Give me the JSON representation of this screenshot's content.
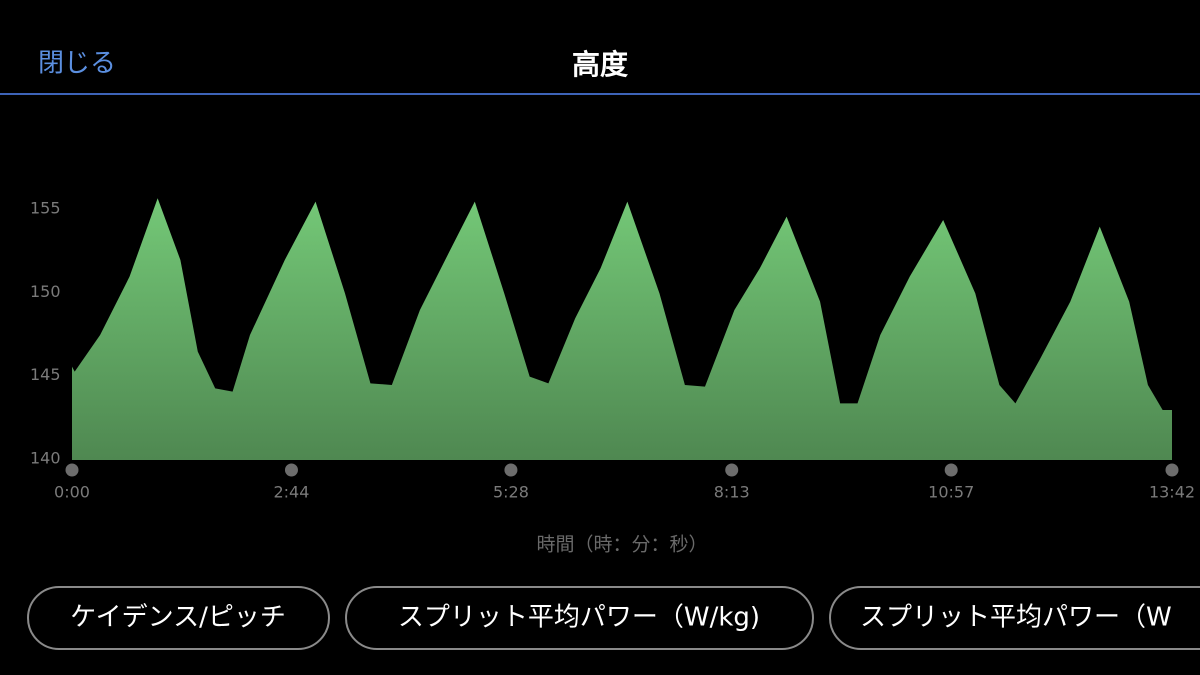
{
  "header": {
    "close": "閉じる",
    "title": "高度"
  },
  "chart_data": {
    "type": "area",
    "x": [
      0,
      2,
      21,
      43,
      64,
      81,
      94,
      107,
      120,
      133,
      159,
      182,
      204,
      223,
      239,
      260,
      282,
      301,
      323,
      342,
      356,
      376,
      395,
      415,
      439,
      458,
      473,
      495,
      514,
      534,
      559,
      574,
      587,
      604,
      626,
      651,
      675,
      693,
      705,
      723,
      746,
      768,
      790,
      804,
      815,
      822
    ],
    "values": [
      145.6,
      145.3,
      147.5,
      151,
      155.7,
      152,
      146.5,
      144.3,
      144.1,
      147.5,
      152,
      155.5,
      150,
      144.6,
      144.5,
      149,
      152.5,
      155.5,
      150,
      145,
      144.6,
      148.5,
      151.5,
      155.5,
      150,
      144.5,
      144.4,
      149,
      151.5,
      154.6,
      149.5,
      143.4,
      143.4,
      147.5,
      151,
      154.4,
      150,
      144.5,
      143.4,
      146,
      149.5,
      154,
      149.5,
      144.5,
      143,
      143
    ],
    "color": "#74c877",
    "xlim": [
      0,
      822
    ],
    "xticks": [
      {
        "value": 0,
        "label": "0:00"
      },
      {
        "value": 164,
        "label": "2:44"
      },
      {
        "value": 328,
        "label": "5:28"
      },
      {
        "value": 493,
        "label": "8:13"
      },
      {
        "value": 657,
        "label": "10:57"
      },
      {
        "value": 822,
        "label": "13:42"
      }
    ],
    "ylim": [
      140,
      156
    ],
    "yticks": [
      140,
      145,
      150,
      155
    ],
    "x_label": "時間（時：分：秒）"
  },
  "buttons": [
    "ケイデンス/ピッチ",
    "スプリット平均パワー（W/kg)",
    "スプリット平均パワー（W"
  ]
}
